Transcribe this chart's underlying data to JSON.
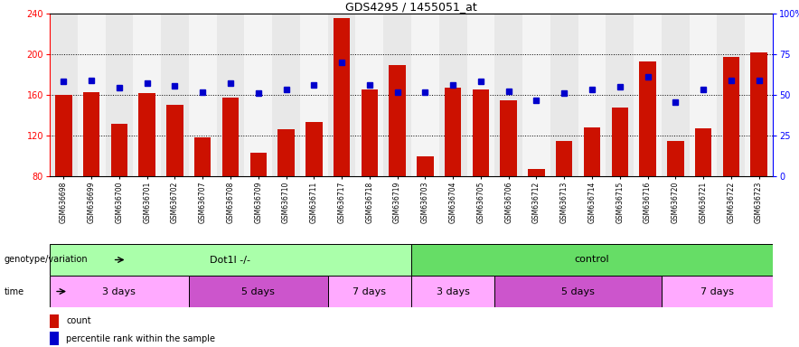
{
  "title": "GDS4295 / 1455051_at",
  "samples": [
    "GSM636698",
    "GSM636699",
    "GSM636700",
    "GSM636701",
    "GSM636702",
    "GSM636707",
    "GSM636708",
    "GSM636709",
    "GSM636710",
    "GSM636711",
    "GSM636717",
    "GSM636718",
    "GSM636719",
    "GSM636703",
    "GSM636704",
    "GSM636705",
    "GSM636706",
    "GSM636712",
    "GSM636713",
    "GSM636714",
    "GSM636715",
    "GSM636716",
    "GSM636720",
    "GSM636721",
    "GSM636722",
    "GSM636723"
  ],
  "counts": [
    160,
    163,
    132,
    162,
    150,
    118,
    157,
    103,
    126,
    133,
    236,
    165,
    189,
    100,
    167,
    165,
    155,
    87,
    115,
    128,
    148,
    193,
    115,
    127,
    197,
    202
  ],
  "percentile_ranks_left_scale": [
    173,
    174,
    167,
    172,
    169,
    163,
    172,
    162,
    165,
    170,
    192,
    170,
    163,
    163,
    170,
    173,
    164,
    155,
    162,
    165,
    168,
    178,
    153,
    165,
    174,
    174
  ],
  "bar_color": "#cc1100",
  "dot_color": "#0000cc",
  "ylim_left": [
    80,
    240
  ],
  "yticks_left": [
    80,
    120,
    160,
    200,
    240
  ],
  "yticks_right_vals": [
    0,
    25,
    50,
    75,
    100
  ],
  "yticks_right_labels": [
    "0",
    "25",
    "50",
    "75",
    "100%"
  ],
  "genotype_groups": [
    {
      "label": "Dot1l -/-",
      "start": 0,
      "end": 13,
      "color": "#aaffaa"
    },
    {
      "label": "control",
      "start": 13,
      "end": 26,
      "color": "#66dd66"
    }
  ],
  "time_groups": [
    {
      "label": "3 days",
      "start": 0,
      "end": 5,
      "color": "#ffaaff"
    },
    {
      "label": "5 days",
      "start": 5,
      "end": 10,
      "color": "#cc66cc"
    },
    {
      "label": "7 days",
      "start": 10,
      "end": 13,
      "color": "#ffaaff"
    },
    {
      "label": "3 days",
      "start": 13,
      "end": 16,
      "color": "#ffaaff"
    },
    {
      "label": "5 days",
      "start": 16,
      "end": 22,
      "color": "#cc66cc"
    },
    {
      "label": "7 days",
      "start": 22,
      "end": 26,
      "color": "#ffaaff"
    }
  ],
  "legend_count_label": "count",
  "legend_pct_label": "percentile rank within the sample",
  "genotype_label": "genotype/variation",
  "time_label": "time",
  "col_bg_even": "#e8e8e8",
  "col_bg_odd": "#f4f4f4"
}
